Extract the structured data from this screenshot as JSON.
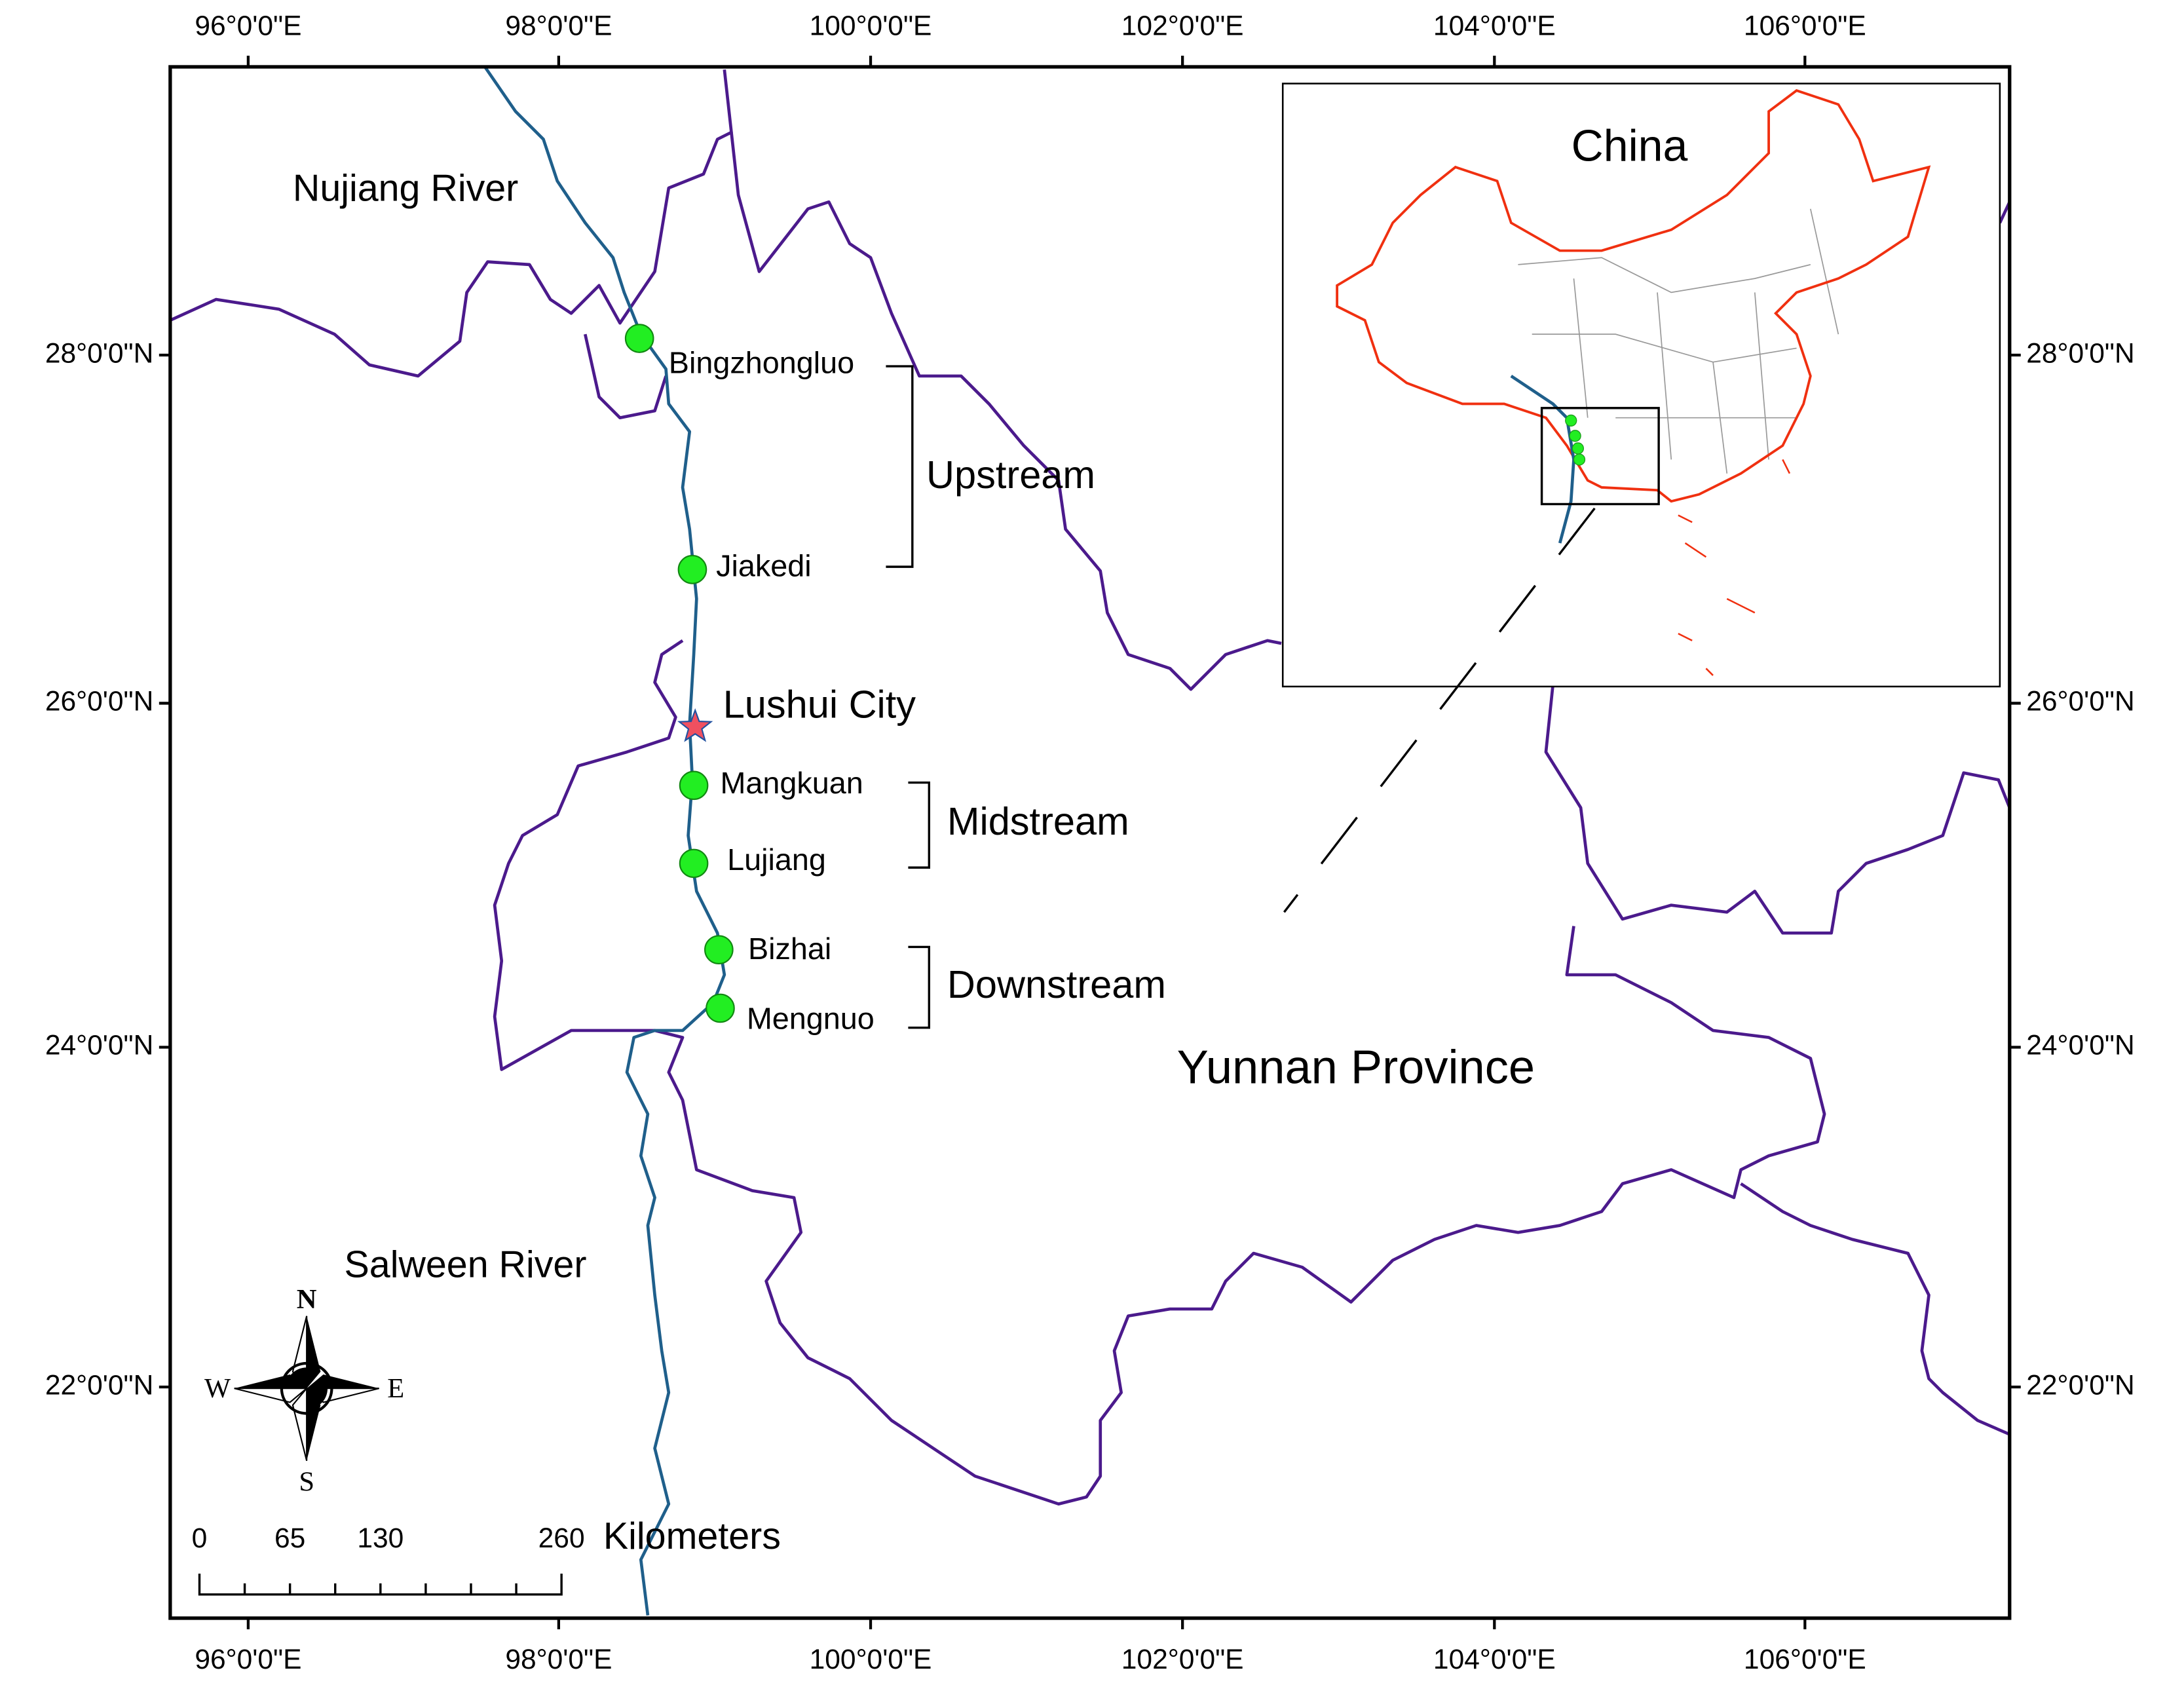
{
  "map": {
    "longitude_labels": [
      "96°0'0\"E",
      "98°0'0\"E",
      "100°0'0\"E",
      "102°0'0\"E",
      "104°0'0\"E",
      "106°0'0\"E"
    ],
    "latitude_labels": [
      "28°0'0\"N",
      "26°0'0\"N",
      "24°0'0\"N",
      "22°0'0\"N"
    ],
    "river_labels": [
      "Nujiang River",
      "Salween River"
    ],
    "region_label": "Yunnan Province",
    "city": "Lushui City",
    "sites": [
      "Bingzhongluo",
      "Jiakedi",
      "Mangkuan",
      "Lujiang",
      "Bizhai",
      "Mengnuo"
    ],
    "groups": [
      "Upstream",
      "Midstream",
      "Downstream"
    ],
    "compass": [
      "N",
      "E",
      "S",
      "W"
    ],
    "scale": {
      "ticks": [
        0,
        65,
        130,
        260
      ],
      "unit": "Kilometers"
    }
  },
  "inset": {
    "title": "China"
  }
}
